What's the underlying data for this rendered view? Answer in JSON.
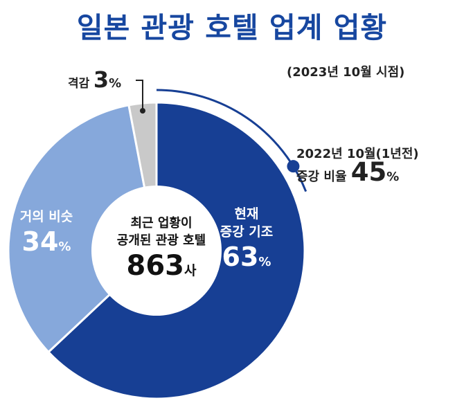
{
  "title": "일본 관광 호텔 업계 업황",
  "subtitle": "(2023년 10월 시점)",
  "center": {
    "line1": "최근 업황이",
    "line2": "공개된 관광 호텔",
    "count": "863",
    "unit": "사"
  },
  "comparison": {
    "line1": "2022년 10월(1년전)",
    "label": "증강 비율",
    "value": "45",
    "unit": "%"
  },
  "labels": {
    "up_line1": "현재",
    "up_line2": "증강 기조",
    "same": "거의 비슷",
    "drop": "격감"
  },
  "colors": {
    "title": "#1747a0",
    "up": "#173f94",
    "same": "#86a8db",
    "drop": "#c9c9c9",
    "arc": "#173f94"
  },
  "chart_data": {
    "type": "pie",
    "donut": true,
    "title": "일본 관광 호텔 업계 업황",
    "total_count": 863,
    "unit": "%",
    "slices": [
      {
        "label": "현재 증강 기조",
        "value": 63
      },
      {
        "label": "거의 비슷",
        "value": 34
      },
      {
        "label": "격감",
        "value": 3
      }
    ],
    "reference": {
      "label": "2022년 10월(1년전) 증강 비율",
      "value": 45
    }
  }
}
